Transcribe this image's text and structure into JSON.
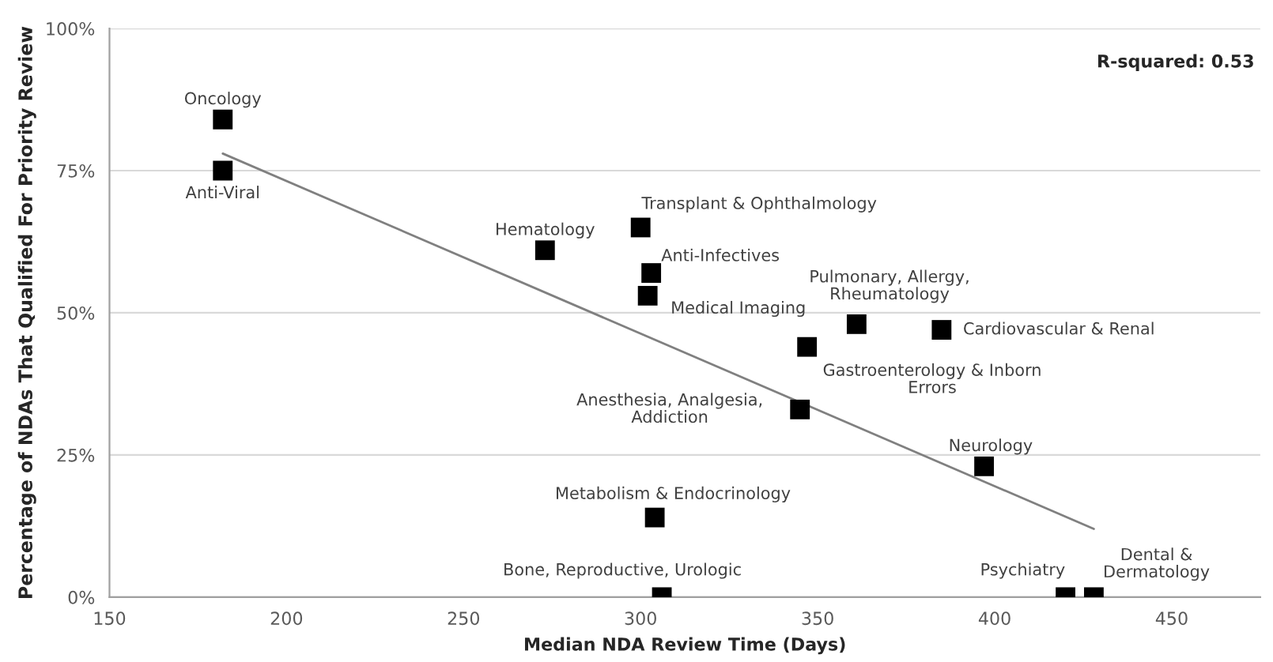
{
  "chart_data": {
    "type": "scatter",
    "xlabel": "Median NDA Review Time (Days)",
    "ylabel": "Percentage of NDAs That Qualified For Priority Review",
    "xlim": [
      150,
      475
    ],
    "xticks": [
      150,
      200,
      250,
      300,
      350,
      400,
      450
    ],
    "ylim": [
      0,
      100
    ],
    "yticks": [
      {
        "value": 0,
        "label": "0%"
      },
      {
        "value": 25,
        "label": "25%"
      },
      {
        "value": 50,
        "label": "50%"
      },
      {
        "value": 75,
        "label": "75%"
      },
      {
        "value": 100,
        "label": "100%"
      }
    ],
    "grid": "y",
    "legend": false,
    "series": [
      {
        "marker": "square",
        "color": "#000000",
        "x": [
          182,
          182,
          273,
          300,
          303,
          302,
          361,
          385,
          347,
          345,
          397,
          304,
          306,
          420,
          428
        ],
        "values": [
          84,
          75,
          61,
          65,
          57,
          53,
          48,
          47,
          44,
          33,
          23,
          14,
          0,
          0,
          0
        ]
      },
      {
        "type": "line",
        "marker": "none",
        "color": "#808080",
        "x": [
          182,
          428
        ],
        "values": [
          78,
          12
        ]
      }
    ],
    "annotations": [
      {
        "text": "Oncology",
        "x": 182,
        "y": 84
      },
      {
        "text": "Anti-Viral",
        "x": 182,
        "y": 75
      },
      {
        "text": "Hematology",
        "x": 273,
        "y": 61
      },
      {
        "text": "Transplant & Ophthalmology",
        "x": 300,
        "y": 65
      },
      {
        "text": "Anti-Infectives",
        "x": 303,
        "y": 57
      },
      {
        "text": "Medical Imaging",
        "x": 302,
        "y": 53
      },
      {
        "text": "Pulmonary, Allergy,\nRheumatology",
        "x": 361,
        "y": 48
      },
      {
        "text": "Cardiovascular & Renal",
        "x": 385,
        "y": 47
      },
      {
        "text": "Gastroenterology & Inborn\nErrors",
        "x": 347,
        "y": 44
      },
      {
        "text": "Anesthesia, Analgesia,\nAddiction",
        "x": 345,
        "y": 33
      },
      {
        "text": "Neurology",
        "x": 397,
        "y": 23
      },
      {
        "text": "Metabolism & Endocrinology",
        "x": 304,
        "y": 14
      },
      {
        "text": "Bone, Reproductive, Urologic",
        "x": 306,
        "y": 0
      },
      {
        "text": "Psychiatry",
        "x": 420,
        "y": 0
      },
      {
        "text": "Dental &\nDermatology",
        "x": 428,
        "y": 0
      },
      "R-squared: 0.53"
    ]
  }
}
